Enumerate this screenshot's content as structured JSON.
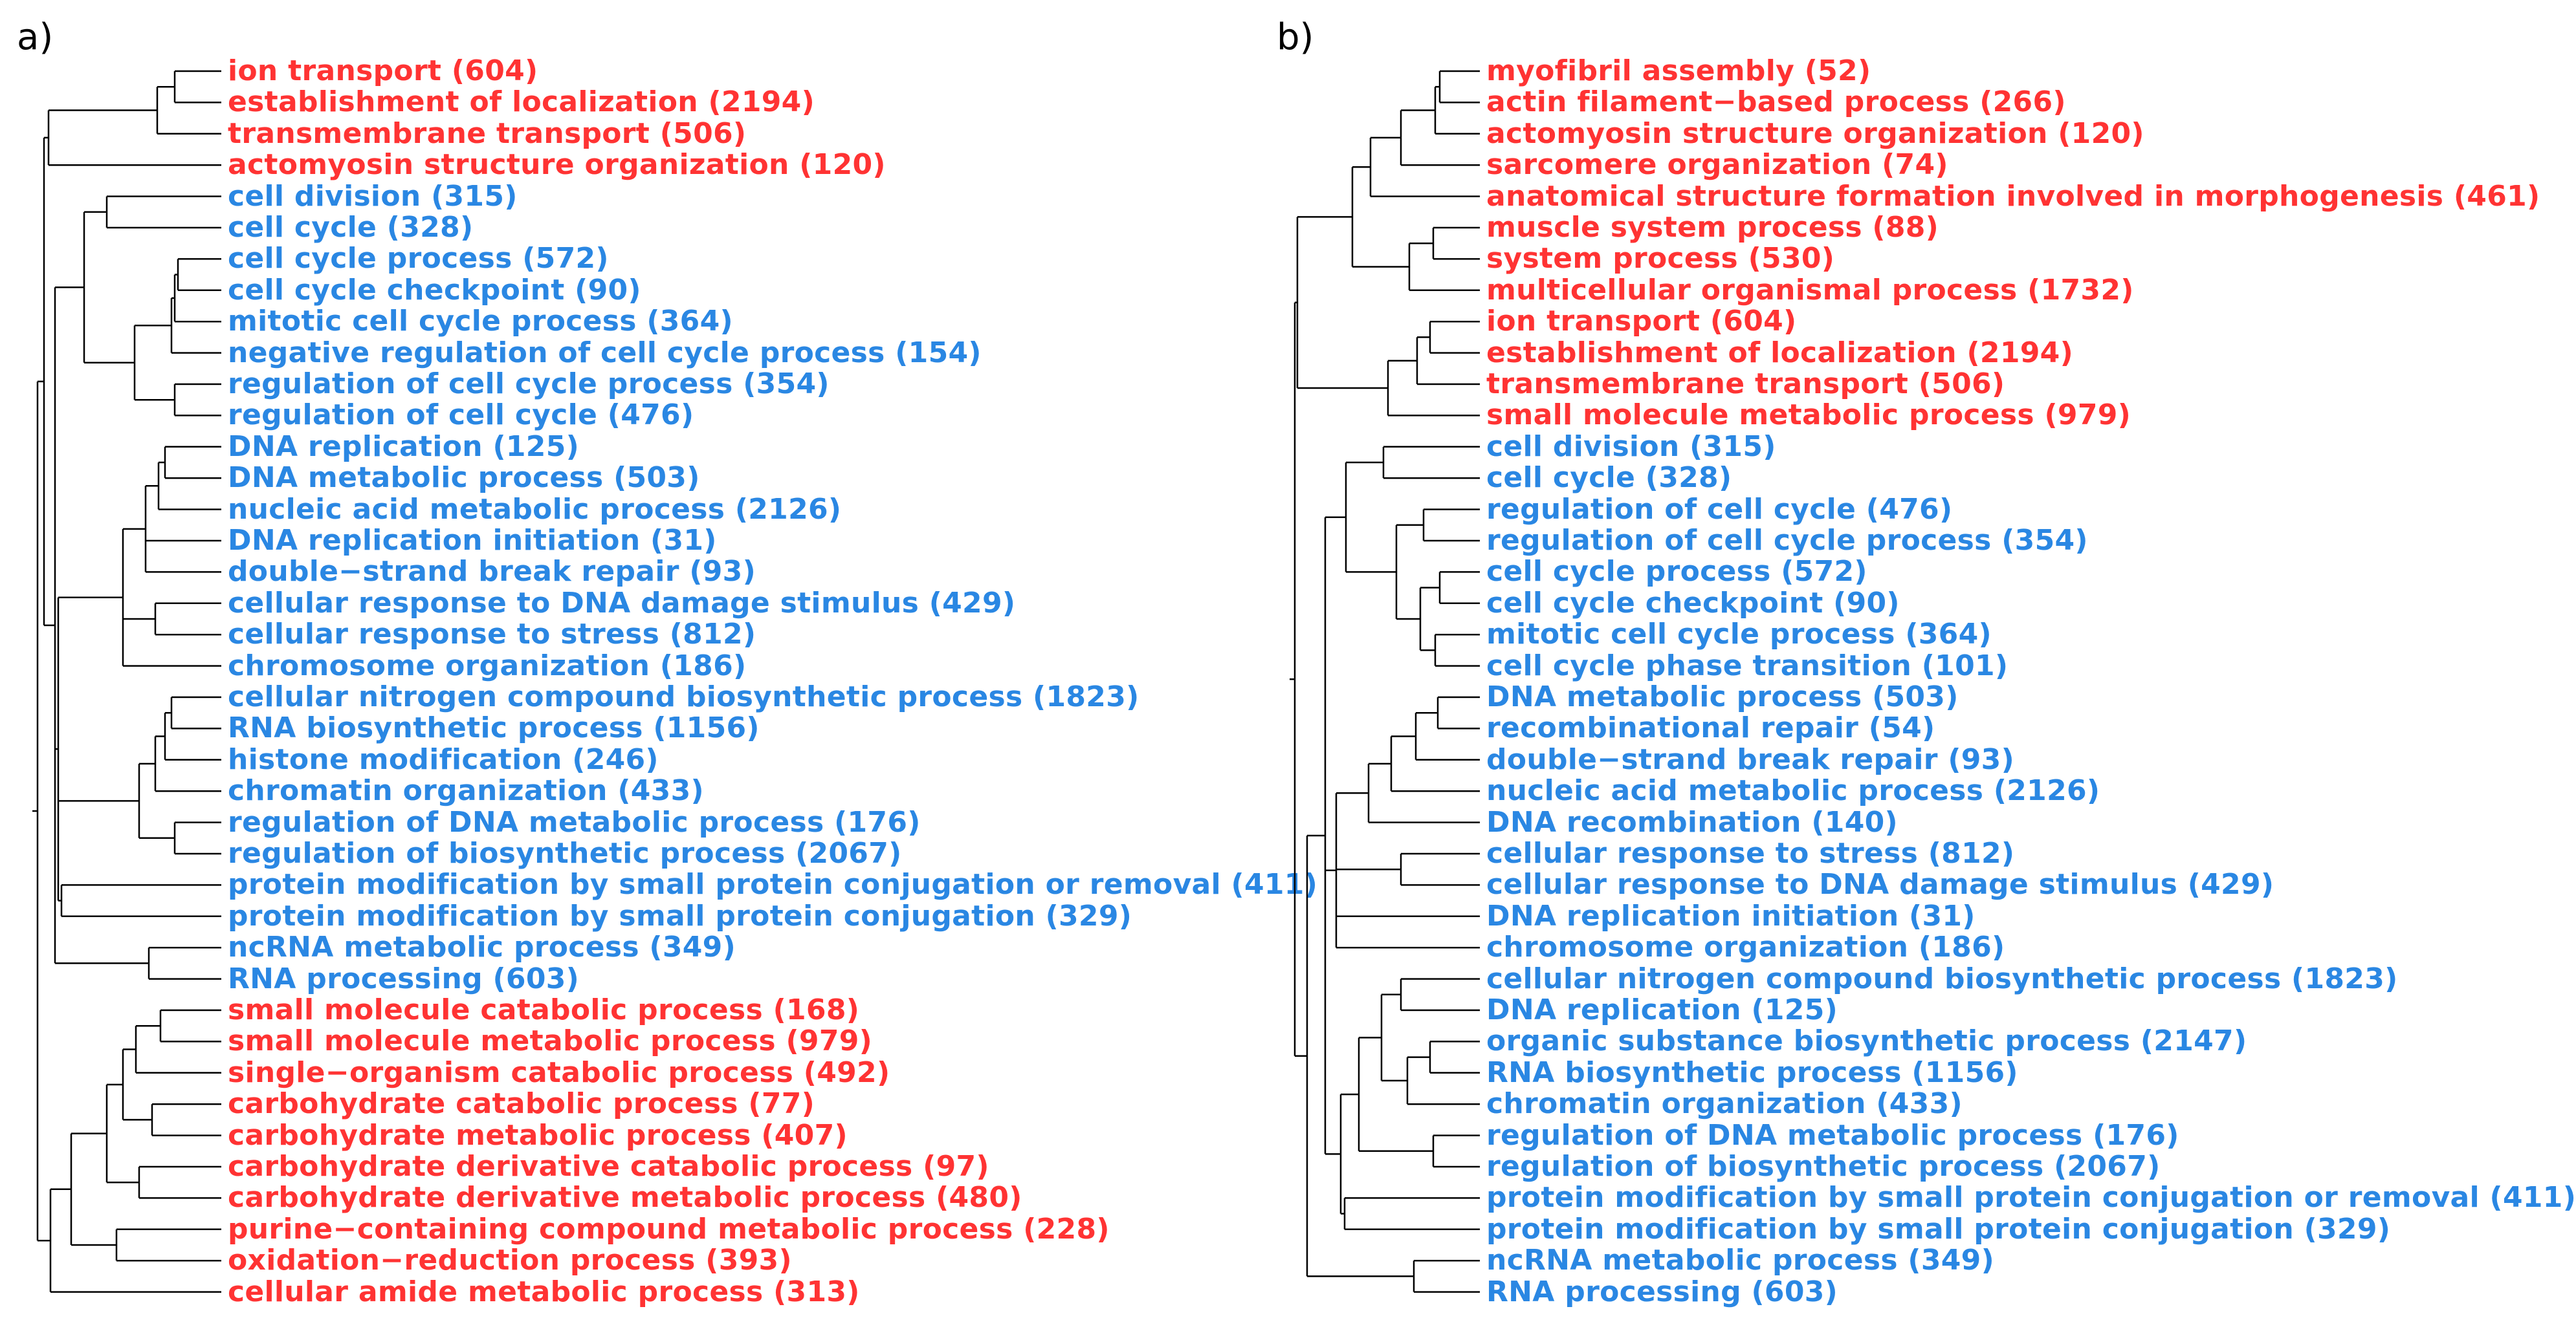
{
  "colors": {
    "red": "#ff3333",
    "blue": "#2a87e3",
    "tree": "#000000"
  },
  "panels": [
    {
      "label": "a)",
      "terms": [
        {
          "text": "ion transport (604)",
          "color": "red"
        },
        {
          "text": "establishment of localization (2194)",
          "color": "red"
        },
        {
          "text": "transmembrane transport (506)",
          "color": "red"
        },
        {
          "text": "actomyosin structure organization (120)",
          "color": "red"
        },
        {
          "text": "cell division (315)",
          "color": "blue"
        },
        {
          "text": "cell cycle (328)",
          "color": "blue"
        },
        {
          "text": "cell cycle process (572)",
          "color": "blue"
        },
        {
          "text": "cell cycle checkpoint (90)",
          "color": "blue"
        },
        {
          "text": "mitotic cell cycle process (364)",
          "color": "blue"
        },
        {
          "text": "negative regulation of cell cycle process (154)",
          "color": "blue"
        },
        {
          "text": "regulation of cell cycle process (354)",
          "color": "blue"
        },
        {
          "text": "regulation of cell cycle (476)",
          "color": "blue"
        },
        {
          "text": "DNA replication (125)",
          "color": "blue"
        },
        {
          "text": "DNA metabolic process (503)",
          "color": "blue"
        },
        {
          "text": "nucleic acid metabolic process (2126)",
          "color": "blue"
        },
        {
          "text": "DNA replication initiation (31)",
          "color": "blue"
        },
        {
          "text": "double−strand break repair (93)",
          "color": "blue"
        },
        {
          "text": "cellular response to DNA damage stimulus (429)",
          "color": "blue"
        },
        {
          "text": "cellular response to stress (812)",
          "color": "blue"
        },
        {
          "text": "chromosome organization (186)",
          "color": "blue"
        },
        {
          "text": "cellular nitrogen compound biosynthetic process (1823)",
          "color": "blue"
        },
        {
          "text": "RNA biosynthetic process (1156)",
          "color": "blue"
        },
        {
          "text": "histone modification (246)",
          "color": "blue"
        },
        {
          "text": "chromatin organization (433)",
          "color": "blue"
        },
        {
          "text": "regulation of DNA metabolic process (176)",
          "color": "blue"
        },
        {
          "text": "regulation of biosynthetic process (2067)",
          "color": "blue"
        },
        {
          "text": "protein modification by small protein conjugation or removal (411)",
          "color": "blue"
        },
        {
          "text": "protein modification by small protein conjugation (329)",
          "color": "blue"
        },
        {
          "text": "ncRNA metabolic process (349)",
          "color": "blue"
        },
        {
          "text": "RNA processing (603)",
          "color": "blue"
        },
        {
          "text": "small molecule catabolic process (168)",
          "color": "red"
        },
        {
          "text": "small molecule metabolic process (979)",
          "color": "red"
        },
        {
          "text": "single−organism catabolic process (492)",
          "color": "red"
        },
        {
          "text": "carbohydrate catabolic process (77)",
          "color": "red"
        },
        {
          "text": "carbohydrate metabolic process (407)",
          "color": "red"
        },
        {
          "text": "carbohydrate derivative catabolic process (97)",
          "color": "red"
        },
        {
          "text": "carbohydrate derivative metabolic process (480)",
          "color": "red"
        },
        {
          "text": "purine−containing compound metabolic process (228)",
          "color": "red"
        },
        {
          "text": "oxidation−reduction process (393)",
          "color": "red"
        },
        {
          "text": "cellular amide metabolic process (313)",
          "color": "red"
        }
      ]
    },
    {
      "label": "b)",
      "terms": [
        {
          "text": "myofibril assembly (52)",
          "color": "red"
        },
        {
          "text": "actin filament−based process (266)",
          "color": "red"
        },
        {
          "text": "actomyosin structure organization (120)",
          "color": "red"
        },
        {
          "text": "sarcomere organization (74)",
          "color": "red"
        },
        {
          "text": "anatomical structure formation involved in morphogenesis (461)",
          "color": "red"
        },
        {
          "text": "muscle system process (88)",
          "color": "red"
        },
        {
          "text": "system process (530)",
          "color": "red"
        },
        {
          "text": "multicellular organismal process (1732)",
          "color": "red"
        },
        {
          "text": "ion transport (604)",
          "color": "red"
        },
        {
          "text": "establishment of localization (2194)",
          "color": "red"
        },
        {
          "text": "transmembrane transport (506)",
          "color": "red"
        },
        {
          "text": "small molecule metabolic process (979)",
          "color": "red"
        },
        {
          "text": "cell division (315)",
          "color": "blue"
        },
        {
          "text": "cell cycle (328)",
          "color": "blue"
        },
        {
          "text": "regulation of cell cycle (476)",
          "color": "blue"
        },
        {
          "text": "regulation of cell cycle process (354)",
          "color": "blue"
        },
        {
          "text": "cell cycle process (572)",
          "color": "blue"
        },
        {
          "text": "cell cycle checkpoint (90)",
          "color": "blue"
        },
        {
          "text": "mitotic cell cycle process (364)",
          "color": "blue"
        },
        {
          "text": "cell cycle phase transition (101)",
          "color": "blue"
        },
        {
          "text": "DNA metabolic process (503)",
          "color": "blue"
        },
        {
          "text": "recombinational repair (54)",
          "color": "blue"
        },
        {
          "text": "double−strand break repair (93)",
          "color": "blue"
        },
        {
          "text": "nucleic acid metabolic process (2126)",
          "color": "blue"
        },
        {
          "text": "DNA recombination (140)",
          "color": "blue"
        },
        {
          "text": "cellular response to stress (812)",
          "color": "blue"
        },
        {
          "text": "cellular response to DNA damage stimulus (429)",
          "color": "blue"
        },
        {
          "text": "DNA replication initiation (31)",
          "color": "blue"
        },
        {
          "text": "chromosome organization (186)",
          "color": "blue"
        },
        {
          "text": "cellular nitrogen compound biosynthetic process (1823)",
          "color": "blue"
        },
        {
          "text": "DNA replication (125)",
          "color": "blue"
        },
        {
          "text": "organic substance biosynthetic process (2147)",
          "color": "blue"
        },
        {
          "text": "RNA biosynthetic process (1156)",
          "color": "blue"
        },
        {
          "text": "chromatin organization (433)",
          "color": "blue"
        },
        {
          "text": "regulation of DNA metabolic process (176)",
          "color": "blue"
        },
        {
          "text": "regulation of biosynthetic process (2067)",
          "color": "blue"
        },
        {
          "text": "protein modification by small protein conjugation or removal (411)",
          "color": "blue"
        },
        {
          "text": "protein modification by small protein conjugation (329)",
          "color": "blue"
        },
        {
          "text": "ncRNA metabolic process (349)",
          "color": "blue"
        },
        {
          "text": "RNA processing (603)",
          "color": "blue"
        }
      ]
    }
  ]
}
